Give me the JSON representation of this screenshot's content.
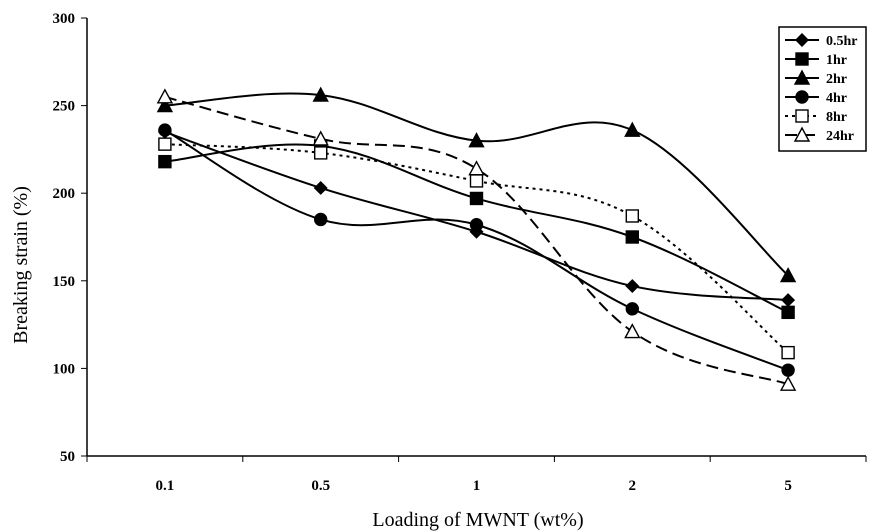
{
  "chart_data": {
    "type": "line",
    "title": "",
    "xlabel": "Loading of MWNT (wt%)",
    "ylabel": "Breaking strain (%)",
    "categories": [
      "0.1",
      "0.5",
      "1",
      "2",
      "5"
    ],
    "ylim": [
      50,
      300
    ],
    "yticks": [
      "50",
      "100",
      "150",
      "200",
      "250",
      "300"
    ],
    "grid": false,
    "legend_position": "top-right",
    "series": [
      {
        "name": "0.5hr",
        "marker": "diamond-filled",
        "line": "solid",
        "values": [
          235,
          203,
          178,
          147,
          139
        ]
      },
      {
        "name": "1hr",
        "marker": "square-filled",
        "line": "solid",
        "values": [
          218,
          227,
          197,
          175,
          132
        ]
      },
      {
        "name": "2hr",
        "marker": "triangle-filled",
        "line": "solid",
        "values": [
          250,
          256,
          230,
          236,
          153
        ]
      },
      {
        "name": "4hr",
        "marker": "circle-filled",
        "line": "solid",
        "values": [
          236,
          185,
          182,
          134,
          99
        ]
      },
      {
        "name": "8hr",
        "marker": "square-open",
        "line": "dotted",
        "values": [
          228,
          223,
          207,
          187,
          109
        ]
      },
      {
        "name": "24hr",
        "marker": "triangle-open",
        "line": "dashed",
        "values": [
          255,
          231,
          214,
          121,
          91
        ]
      }
    ]
  }
}
